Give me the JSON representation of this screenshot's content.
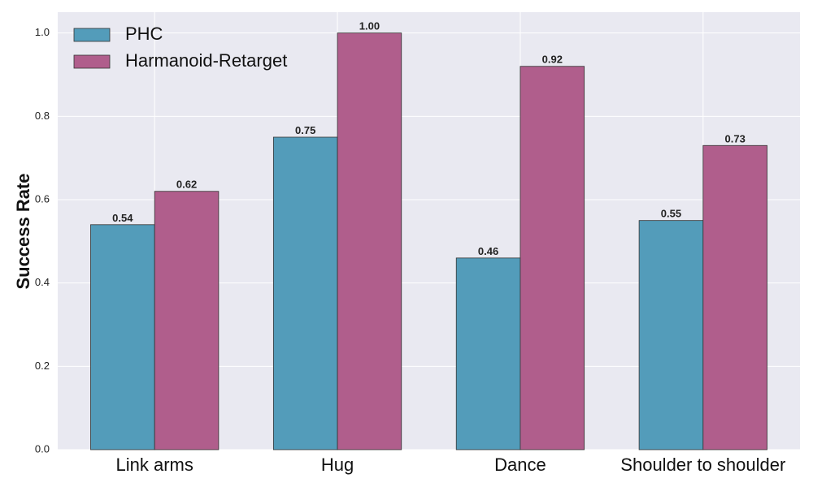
{
  "chart_data": {
    "type": "bar",
    "title": "",
    "xlabel": "",
    "ylabel": "Success Rate",
    "ylim": [
      0,
      1.05
    ],
    "yticks": [
      "0.0",
      "0.2",
      "0.4",
      "0.6",
      "0.8",
      "1.0"
    ],
    "categories": [
      "Link arms",
      "Hug",
      "Dance",
      "Shoulder to shoulder"
    ],
    "series": [
      {
        "name": "PHC",
        "color": "#539cba",
        "values": [
          0.54,
          0.75,
          0.46,
          0.55
        ],
        "labels": [
          "0.54",
          "0.75",
          "0.46",
          "0.55"
        ]
      },
      {
        "name": "Harmanoid-Retarget",
        "color": "#b05e8c",
        "values": [
          0.62,
          1.0,
          0.92,
          0.73
        ],
        "labels": [
          "0.62",
          "1.00",
          "0.92",
          "0.73"
        ]
      }
    ],
    "grid": true,
    "legend_position": "top-left",
    "background_color": "#e9e9f1",
    "grid_color": "#ffffff"
  }
}
